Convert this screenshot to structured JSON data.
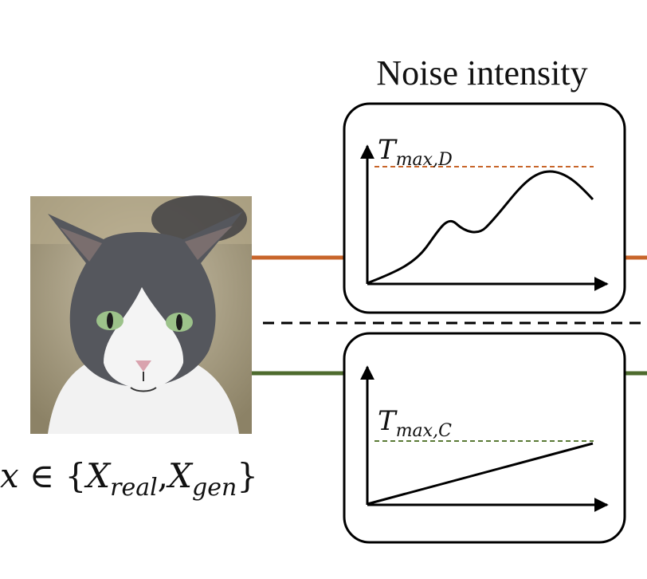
{
  "title": "Noise intensity",
  "input_set": {
    "var": "x",
    "symbol": "∈",
    "open": "{",
    "close": "}",
    "sep": ",",
    "X1": "X",
    "X1_sub": "real",
    "X2": "X",
    "X2_sub": "gen"
  },
  "panel_top": {
    "label_main": "T",
    "label_sub": "max,D",
    "dash_color": "#c8652a",
    "line_color": "#c8652a"
  },
  "panel_bottom": {
    "label_main": "T",
    "label_sub": "max,C",
    "dash_color": "#5a7a36",
    "line_color": "#4e6b2e"
  },
  "image": {
    "subject": "gray-and-white cat face"
  }
}
